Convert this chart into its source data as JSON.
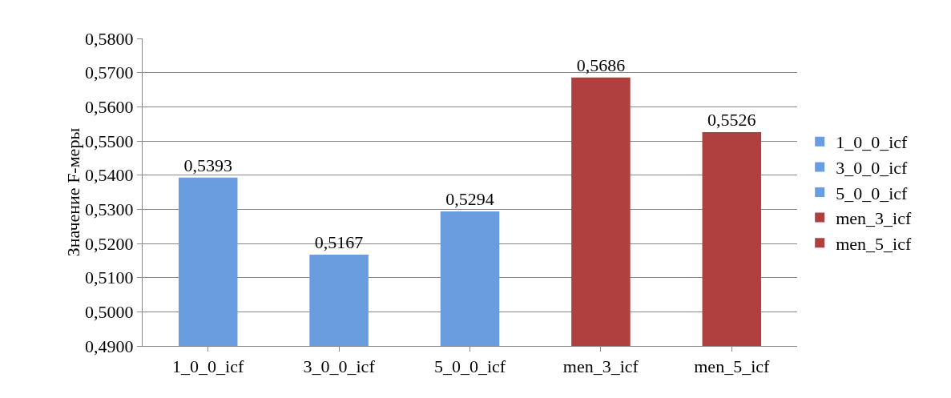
{
  "chart_data": {
    "type": "bar",
    "ylabel": "Значение F-меры",
    "categories": [
      "1_0_0_icf",
      "3_0_0_icf",
      "5_0_0_icf",
      "men_3_icf",
      "men_5_icf"
    ],
    "series": [
      {
        "name": "1_0_0_icf",
        "color": "#6a9de0",
        "values": [
          0.5393,
          null,
          null,
          null,
          null
        ],
        "value_labels": [
          "0,5393",
          null,
          null,
          null,
          null
        ]
      },
      {
        "name": "3_0_0_icf",
        "color": "#6a9de0",
        "values": [
          null,
          0.5167,
          null,
          null,
          null
        ],
        "value_labels": [
          null,
          "0,5167",
          null,
          null,
          null
        ]
      },
      {
        "name": "5_0_0_icf",
        "color": "#6a9de0",
        "values": [
          null,
          null,
          0.5294,
          null,
          null
        ],
        "value_labels": [
          null,
          null,
          "0,5294",
          null,
          null
        ]
      },
      {
        "name": "men_3_icf",
        "color": "#b04040",
        "values": [
          null,
          null,
          null,
          0.5686,
          null
        ],
        "value_labels": [
          null,
          null,
          null,
          "0,5686",
          null
        ]
      },
      {
        "name": "men_5_icf",
        "color": "#b04040",
        "values": [
          null,
          null,
          null,
          null,
          0.5526
        ],
        "value_labels": [
          null,
          null,
          null,
          null,
          "0,5526"
        ]
      }
    ],
    "ylim": [
      0.49,
      0.58
    ],
    "yticks": [
      {
        "value": 0.49,
        "label": "0,4900"
      },
      {
        "value": 0.5,
        "label": "0,5000"
      },
      {
        "value": 0.51,
        "label": "0,5100"
      },
      {
        "value": 0.52,
        "label": "0,5200"
      },
      {
        "value": 0.53,
        "label": "0,5300"
      },
      {
        "value": 0.54,
        "label": "0,5400"
      },
      {
        "value": 0.55,
        "label": "0,5500"
      },
      {
        "value": 0.56,
        "label": "0,5600"
      },
      {
        "value": 0.57,
        "label": "0,5700"
      },
      {
        "value": 0.58,
        "label": "0,5800"
      }
    ],
    "grid": "y",
    "legend": "right"
  }
}
